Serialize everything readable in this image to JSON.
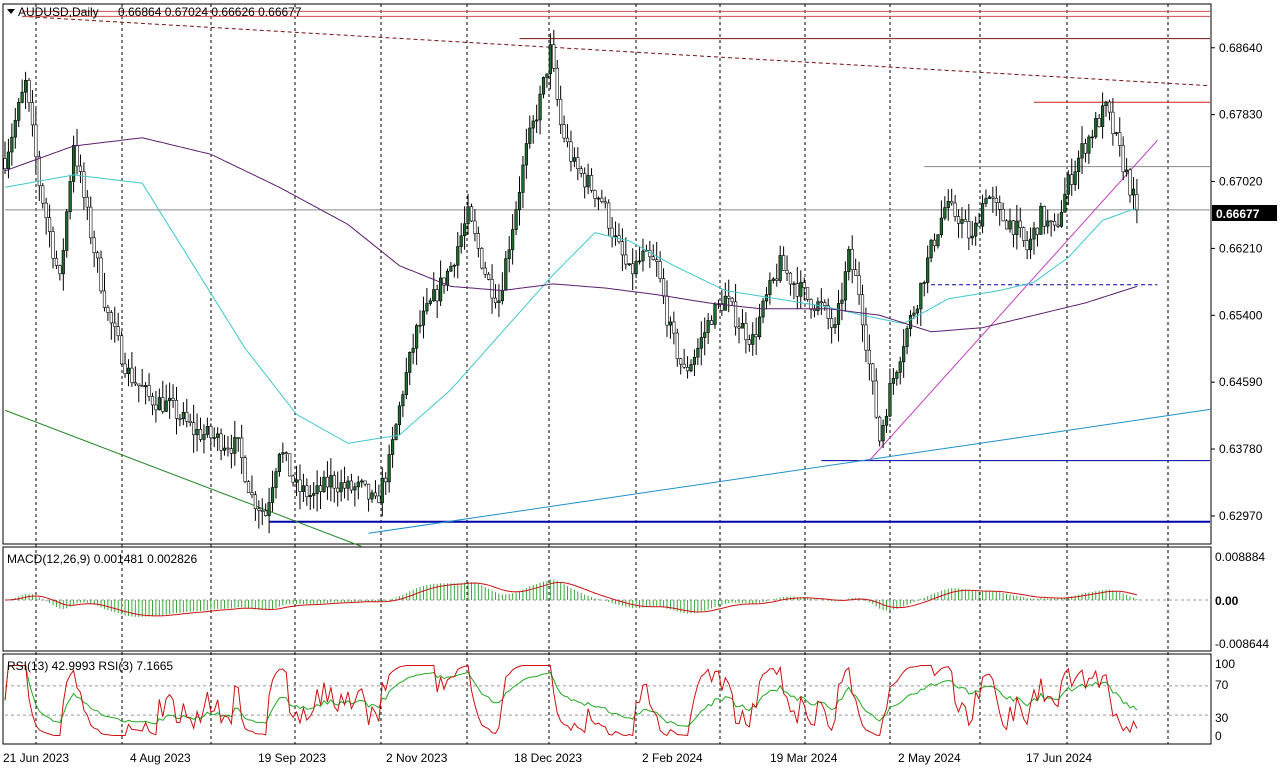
{
  "header": {
    "symbol": "AUDUSD,Daily",
    "ohlc": "0.66864 0.67024 0.66626 0.66677"
  },
  "macd": {
    "label": "MACD(12,26,9) 0.001481 0.002826",
    "top_tick": "0.008884",
    "zero_tick": "0.00",
    "bottom_tick": "-0.008644"
  },
  "rsi": {
    "label": "RSI(13) 42.9993  RSI(3) 7.1665",
    "ticks": [
      "100",
      "70",
      "30",
      "0"
    ]
  },
  "colors": {
    "bull": "#1f6b2f",
    "bear": "#7a1111",
    "ma_fast": "#40c8d0",
    "ma_slow": "#5a1f6e",
    "trend": "#1e90c8",
    "support": "#0000aa",
    "resistance": "#cc2222"
  },
  "chart_data": {
    "type": "candlestick",
    "symbol": "AUDUSD",
    "timeframe": "Daily",
    "last_ohlc": {
      "open": 0.66864,
      "high": 0.67024,
      "low": 0.66626,
      "close": 0.66677
    },
    "current_price_label": "0.66677",
    "price_ticks": [
      "0.68640",
      "0.67830",
      "0.67020",
      "0.66210",
      "0.65400",
      "0.64590",
      "0.63780",
      "0.62970"
    ],
    "x_tick_labels": [
      "21 Jun 2023",
      "4 Aug 2023",
      "19 Sep 2023",
      "2 Nov 2023",
      "18 Dec 2023",
      "2 Feb 2024",
      "19 Mar 2024",
      "2 May 2024",
      "17 Jun 2024"
    ],
    "ylim": [
      0.6263,
      0.6917
    ],
    "key_path": [
      [
        0,
        0.673
      ],
      [
        6,
        0.682
      ],
      [
        10,
        0.67
      ],
      [
        13,
        0.664
      ],
      [
        16,
        0.658
      ],
      [
        20,
        0.675
      ],
      [
        24,
        0.666
      ],
      [
        30,
        0.654
      ],
      [
        36,
        0.647
      ],
      [
        42,
        0.644
      ],
      [
        48,
        0.643
      ],
      [
        55,
        0.64
      ],
      [
        62,
        0.639
      ],
      [
        68,
        0.638
      ],
      [
        72,
        0.632
      ],
      [
        76,
        0.63
      ],
      [
        80,
        0.638
      ],
      [
        85,
        0.633
      ],
      [
        90,
        0.632
      ],
      [
        95,
        0.634
      ],
      [
        100,
        0.633
      ],
      [
        104,
        0.633
      ],
      [
        108,
        0.631
      ],
      [
        112,
        0.636
      ],
      [
        116,
        0.645
      ],
      [
        120,
        0.652
      ],
      [
        125,
        0.656
      ],
      [
        130,
        0.66
      ],
      [
        135,
        0.666
      ],
      [
        138,
        0.662
      ],
      [
        141,
        0.658
      ],
      [
        144,
        0.656
      ],
      [
        148,
        0.665
      ],
      [
        152,
        0.674
      ],
      [
        156,
        0.68
      ],
      [
        159,
        0.686
      ],
      [
        162,
        0.677
      ],
      [
        166,
        0.672
      ],
      [
        170,
        0.67
      ],
      [
        174,
        0.668
      ],
      [
        178,
        0.663
      ],
      [
        182,
        0.659
      ],
      [
        186,
        0.661
      ],
      [
        190,
        0.66
      ],
      [
        194,
        0.652
      ],
      [
        198,
        0.647
      ],
      [
        202,
        0.65
      ],
      [
        206,
        0.654
      ],
      [
        210,
        0.656
      ],
      [
        214,
        0.653
      ],
      [
        218,
        0.651
      ],
      [
        222,
        0.656
      ],
      [
        226,
        0.66
      ],
      [
        230,
        0.658
      ],
      [
        234,
        0.656
      ],
      [
        238,
        0.655
      ],
      [
        242,
        0.652
      ],
      [
        246,
        0.661
      ],
      [
        249,
        0.657
      ],
      [
        252,
        0.648
      ],
      [
        255,
        0.639
      ],
      [
        258,
        0.645
      ],
      [
        262,
        0.651
      ],
      [
        266,
        0.656
      ],
      [
        270,
        0.662
      ],
      [
        274,
        0.667
      ],
      [
        278,
        0.666
      ],
      [
        282,
        0.663
      ],
      [
        286,
        0.669
      ],
      [
        290,
        0.666
      ],
      [
        294,
        0.665
      ],
      [
        298,
        0.662
      ],
      [
        302,
        0.666
      ],
      [
        306,
        0.664
      ],
      [
        310,
        0.67
      ],
      [
        314,
        0.674
      ],
      [
        318,
        0.677
      ],
      [
        321,
        0.679
      ],
      [
        324,
        0.675
      ],
      [
        327,
        0.671
      ],
      [
        330,
        0.6668
      ]
    ],
    "lines": [
      {
        "name": "ma_fast",
        "points": [
          [
            0,
            0.6695
          ],
          [
            20,
            0.671
          ],
          [
            40,
            0.67
          ],
          [
            55,
            0.66
          ],
          [
            70,
            0.65
          ],
          [
            85,
            0.642
          ],
          [
            100,
            0.6385
          ],
          [
            115,
            0.6395
          ],
          [
            130,
            0.645
          ],
          [
            145,
            0.652
          ],
          [
            160,
            0.659
          ],
          [
            172,
            0.664
          ],
          [
            182,
            0.663
          ],
          [
            195,
            0.66
          ],
          [
            210,
            0.657
          ],
          [
            225,
            0.656
          ],
          [
            240,
            0.655
          ],
          [
            250,
            0.654
          ],
          [
            262,
            0.653
          ],
          [
            275,
            0.656
          ],
          [
            290,
            0.657
          ],
          [
            300,
            0.658
          ],
          [
            310,
            0.661
          ],
          [
            320,
            0.6655
          ],
          [
            330,
            0.667
          ]
        ]
      },
      {
        "name": "ma_slow",
        "points": [
          [
            0,
            0.6715
          ],
          [
            20,
            0.6745
          ],
          [
            40,
            0.6755
          ],
          [
            60,
            0.6735
          ],
          [
            80,
            0.6695
          ],
          [
            100,
            0.665
          ],
          [
            115,
            0.66
          ],
          [
            130,
            0.6575
          ],
          [
            145,
            0.657
          ],
          [
            160,
            0.6578
          ],
          [
            175,
            0.6573
          ],
          [
            190,
            0.6565
          ],
          [
            205,
            0.6555
          ],
          [
            220,
            0.6548
          ],
          [
            240,
            0.6548
          ],
          [
            255,
            0.654
          ],
          [
            270,
            0.652
          ],
          [
            285,
            0.6525
          ],
          [
            300,
            0.654
          ],
          [
            315,
            0.6555
          ],
          [
            330,
            0.6575
          ]
        ]
      }
    ],
    "drawn_lines": [
      {
        "name": "upper-dash-trend",
        "from": [
          5,
          0.6902
        ],
        "to": [
          355,
          0.6818
        ],
        "style": "dash"
      },
      {
        "name": "top-resistance-a",
        "from": [
          5,
          0.6908
        ],
        "to": [
          355,
          0.6908
        ]
      },
      {
        "name": "top-resistance-b",
        "from": [
          5,
          0.6902
        ],
        "to": [
          355,
          0.6902
        ]
      },
      {
        "name": "dec-high",
        "from": [
          150,
          0.6875
        ],
        "to": [
          355,
          0.6875
        ]
      },
      {
        "name": "jun-high",
        "from": [
          300,
          0.6798
        ],
        "to": [
          355,
          0.6798
        ]
      },
      {
        "name": "may-high",
        "from": [
          268,
          0.672
        ],
        "to": [
          355,
          0.672
        ]
      },
      {
        "name": "support-dash",
        "from": [
          270,
          0.6577
        ],
        "to": [
          336,
          0.6577
        ],
        "style": "dash"
      },
      {
        "name": "apr-low",
        "from": [
          238,
          0.6364
        ],
        "to": [
          355,
          0.6364
        ]
      },
      {
        "name": "oct-low",
        "from": [
          77,
          0.629
        ],
        "to": [
          355,
          0.629
        ]
      },
      {
        "name": "rising-trend",
        "from": [
          106,
          0.6276
        ],
        "to": [
          355,
          0.6426
        ]
      },
      {
        "name": "magenta-trend",
        "from": [
          252,
          0.6364
        ],
        "to": [
          336,
          0.6752
        ]
      },
      {
        "name": "falling-green",
        "from": [
          0,
          0.6425
        ],
        "to": [
          104,
          0.626
        ]
      }
    ],
    "current_price": 0.66677
  }
}
